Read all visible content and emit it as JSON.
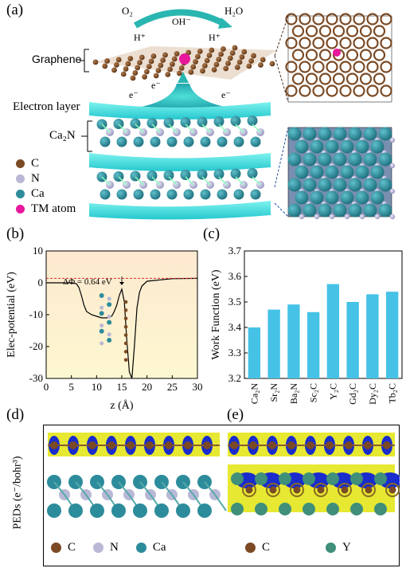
{
  "panels": {
    "a": {
      "letter": "(a)",
      "o2": "O₂",
      "oh": "OH⁻",
      "h2o": "H₂O",
      "h_left": "H⁺",
      "h_right": "H⁺",
      "graphene": "Graphene",
      "e1": "e⁻",
      "e2": "e⁻",
      "e3": "e⁻",
      "electron_layer": "Electron layer",
      "ca2n": "Ca₂N",
      "legend": [
        {
          "label": "C",
          "color": "#7b4a24"
        },
        {
          "label": "N",
          "color": "#b9b8d6"
        },
        {
          "label": "Ca",
          "color": "#2d8c9b"
        },
        {
          "label": "TM atom",
          "color": "#e8179c"
        }
      ]
    },
    "b": {
      "letter": "(b)",
      "annotation": "ΔΦ = 0.64 eV"
    },
    "c": {
      "letter": "(c)"
    },
    "d": {
      "letter": "(d)",
      "legend": [
        {
          "label": "C",
          "color": "#7b4a24"
        },
        {
          "label": "N",
          "color": "#b9b8d6"
        },
        {
          "label": "Ca",
          "color": "#2d8c9b"
        }
      ]
    },
    "e": {
      "letter": "(e)",
      "legend": [
        {
          "label": "C",
          "color": "#7b4a24"
        },
        {
          "label": "Y",
          "color": "#3f8f7a"
        }
      ]
    },
    "peds_label": "PEDs (e⁻/bohr³)"
  },
  "chart_data": [
    {
      "type": "line",
      "xlabel": "z (Å)",
      "ylabel": "Elec-potential (eV)",
      "xlim": [
        0,
        30
      ],
      "ylim": [
        -30,
        10
      ],
      "xticks": [
        "0",
        "5",
        "10",
        "15",
        "20",
        "25",
        "30"
      ],
      "yticks": [
        "10",
        "0",
        "-10",
        "-20",
        "-30"
      ],
      "series": [
        {
          "x": [
            0,
            5,
            6,
            6.5,
            7,
            7.5,
            8,
            9,
            10,
            11,
            12,
            13,
            13.5,
            14,
            14.5,
            15,
            15.5,
            16,
            16.5,
            17,
            17.5,
            18,
            18.5,
            19,
            20,
            25,
            30
          ],
          "y": [
            0,
            0,
            -0.3,
            -1.5,
            -4,
            -7,
            -9,
            -10,
            -10.5,
            -11,
            -11,
            -10.5,
            -9,
            -7,
            -4,
            -2,
            -6,
            -18,
            -28,
            -30,
            -20,
            -8,
            -3,
            -1,
            0.5,
            1.3,
            1.4
          ]
        }
      ],
      "vacuum_level_left": 0.8,
      "vacuum_level_right": 1.4
    },
    {
      "type": "bar",
      "ylabel": "Work Function (eV)",
      "ylim": [
        3.2,
        3.7
      ],
      "yticks": [
        "3.7",
        "3.6",
        "3.5",
        "3.4",
        "3.3",
        "3.2"
      ],
      "categories": [
        "Ca₂N",
        "Sr₂N",
        "Ba₂N",
        "Sc₂C",
        "Y₂C",
        "Gd₂C",
        "Dy₂C",
        "Tb₂C"
      ],
      "values": [
        3.4,
        3.47,
        3.49,
        3.46,
        3.57,
        3.5,
        3.53,
        3.54
      ],
      "color": "#45c2e6"
    }
  ]
}
